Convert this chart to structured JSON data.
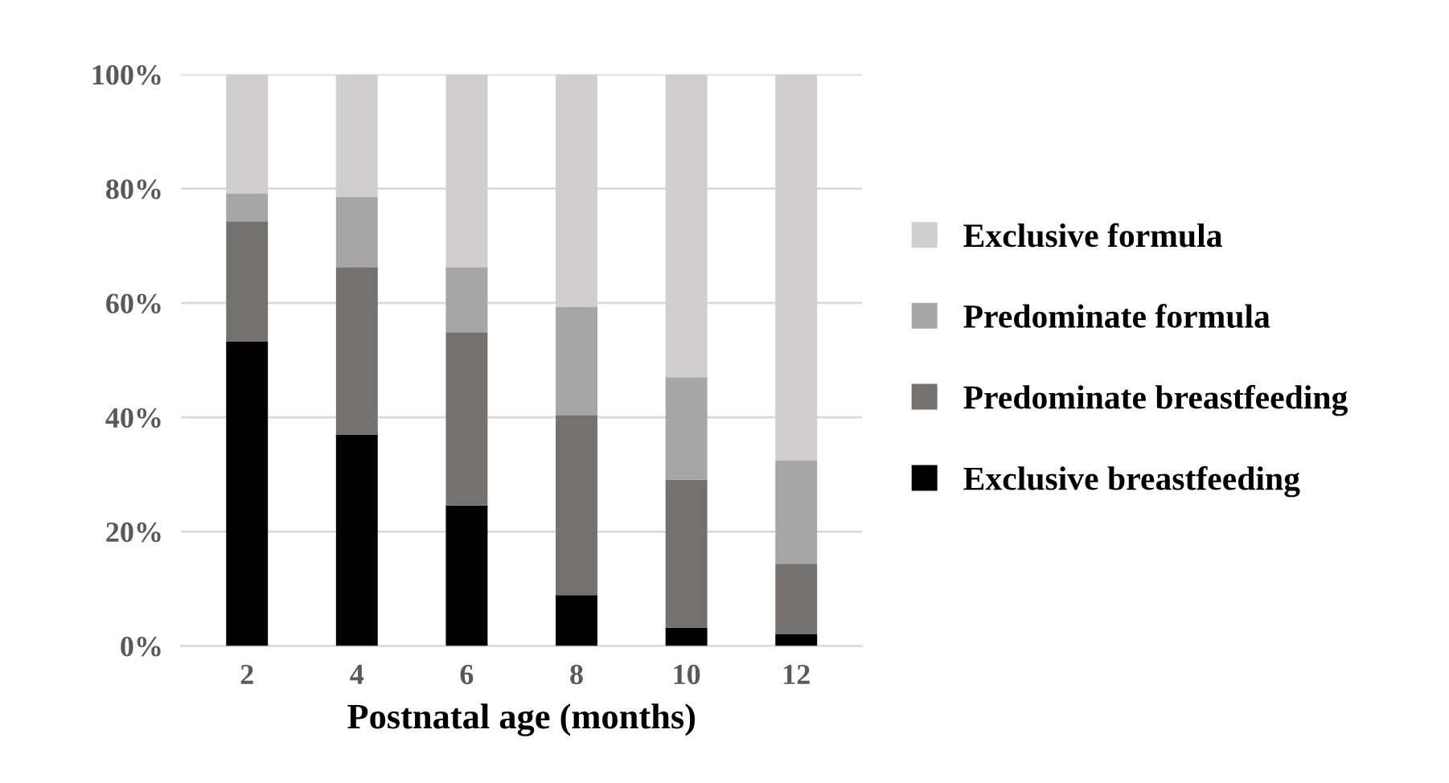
{
  "chart_data": {
    "type": "bar",
    "stacked": true,
    "xlabel": "Postnatal age (months)",
    "categories": [
      "2",
      "4",
      "6",
      "8",
      "10",
      "12"
    ],
    "series": [
      {
        "name": "Exclusive breastfeeding",
        "color": "#000000",
        "values": [
          53.3,
          37.0,
          24.6,
          8.9,
          3.2,
          2.1
        ]
      },
      {
        "name": "Predominate breastfeeding",
        "color": "#767171",
        "values": [
          21.0,
          29.3,
          30.3,
          31.5,
          25.9,
          12.3
        ]
      },
      {
        "name": "Predominate formula",
        "color": "#a6a6a6",
        "values": [
          4.9,
          12.3,
          11.4,
          18.9,
          17.9,
          18.1
        ]
      },
      {
        "name": "Exclusive formula",
        "color": "#d0cece",
        "values": [
          20.8,
          21.4,
          33.7,
          40.7,
          53.0,
          67.5
        ]
      }
    ],
    "ylim": [
      0,
      100
    ],
    "yticks": [
      {
        "value": 0,
        "label": "0%"
      },
      {
        "value": 20,
        "label": "20%"
      },
      {
        "value": 40,
        "label": "40%"
      },
      {
        "value": 60,
        "label": "60%"
      },
      {
        "value": 80,
        "label": "80%"
      },
      {
        "value": 100,
        "label": "100%"
      }
    ],
    "grid": "y",
    "legend": "right"
  }
}
